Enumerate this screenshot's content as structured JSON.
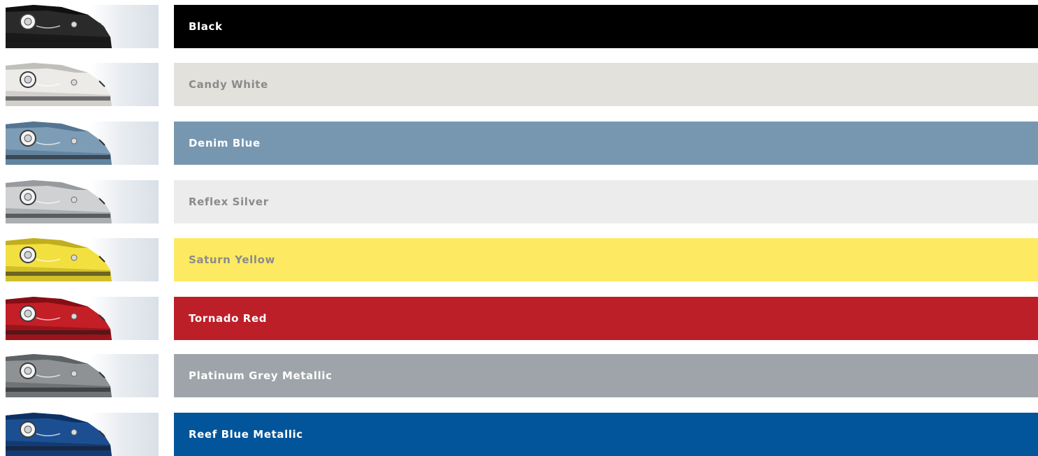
{
  "colors": [
    {
      "name": "Black",
      "bar_color": "#000000",
      "text_color": "#ffffff",
      "car_color": "#2a2a2a",
      "car_shade": "#0c0c0c"
    },
    {
      "name": "Candy White",
      "bar_color": "#e2e1dc",
      "text_color": "#8b8b8b",
      "car_color": "#ecebe8",
      "car_shade": "#b9b8b3"
    },
    {
      "name": "Denim Blue",
      "bar_color": "#7797b0",
      "text_color": "#ffffff",
      "car_color": "#7d9db6",
      "car_shade": "#4c6f8c"
    },
    {
      "name": "Reflex Silver",
      "bar_color": "#ececec",
      "text_color": "#8b8b8b",
      "car_color": "#cfd1d3",
      "car_shade": "#8e9194"
    },
    {
      "name": "Saturn Yellow",
      "bar_color": "#fdea62",
      "text_color": "#8b8b8b",
      "car_color": "#f2e040",
      "car_shade": "#b8a51a"
    },
    {
      "name": "Tornado Red",
      "bar_color": "#bd1f28",
      "text_color": "#ffffff",
      "car_color": "#c41e26",
      "car_shade": "#7a0c12"
    },
    {
      "name": "Platinum Grey Metallic",
      "bar_color": "#9ea4a9",
      "text_color": "#ffffff",
      "car_color": "#8e9295",
      "car_shade": "#55595c"
    },
    {
      "name": "Reef Blue Metallic",
      "bar_color": "#02559a",
      "text_color": "#ffffff",
      "car_color": "#1c4f92",
      "car_shade": "#0b2c5c"
    }
  ]
}
